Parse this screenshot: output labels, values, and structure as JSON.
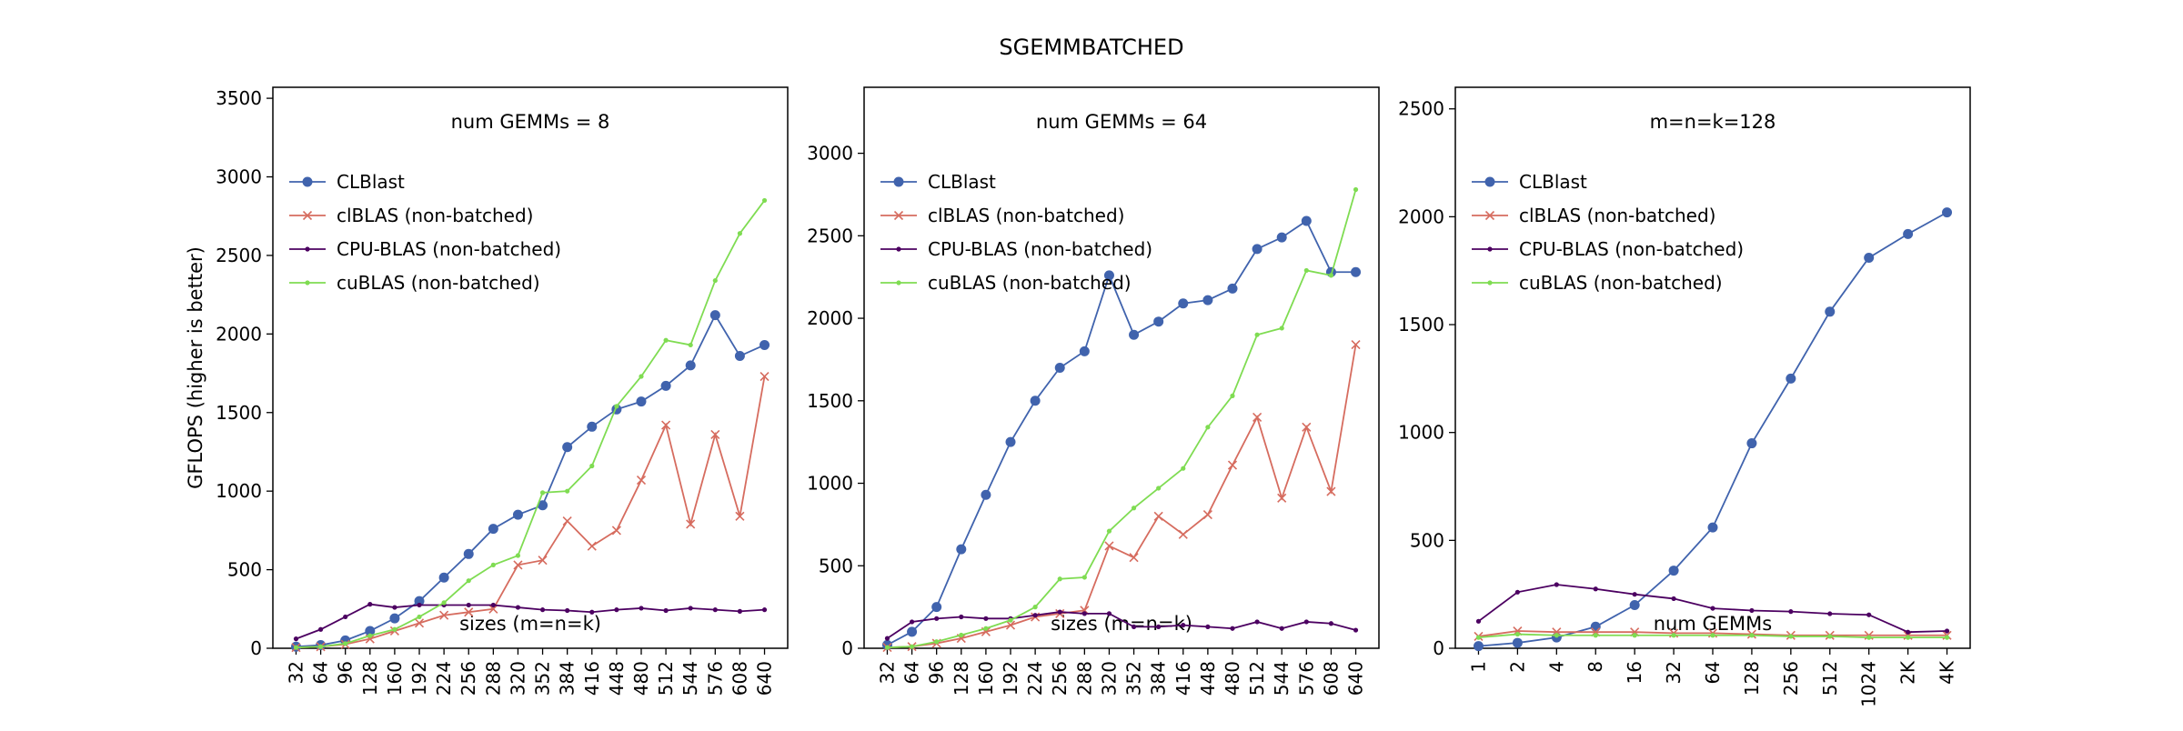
{
  "figure": {
    "suptitle": "SGEMMBATCHED"
  },
  "colors": {
    "CLBlast": "#4063ad",
    "clBLAS": "#d66c5f",
    "CPU-BLAS": "#4c0061",
    "cuBLAS": "#7fdc52"
  },
  "chart_data": [
    {
      "type": "line",
      "title": "num GEMMs = 8",
      "xlabel": "sizes (m=n=k)",
      "ylabel": "GFLOPS (higher is better)",
      "ylim": [
        0,
        3570
      ],
      "yticks": [
        0,
        500,
        1000,
        1500,
        2000,
        2500,
        3000,
        3500
      ],
      "categories": [
        "32",
        "64",
        "96",
        "128",
        "160",
        "192",
        "224",
        "256",
        "288",
        "320",
        "352",
        "384",
        "416",
        "448",
        "480",
        "512",
        "544",
        "576",
        "608",
        "640"
      ],
      "legend_position": "upper left",
      "grid": false,
      "series": [
        {
          "name": "CLBlast",
          "marker": "circle",
          "values": [
            10,
            20,
            50,
            110,
            190,
            300,
            450,
            600,
            760,
            850,
            910,
            1280,
            1410,
            1520,
            1570,
            1670,
            1800,
            2120,
            1860,
            1930
          ]
        },
        {
          "name": "clBLAS (non-batched)",
          "marker": "x",
          "values": [
            5,
            10,
            25,
            60,
            110,
            160,
            210,
            230,
            250,
            530,
            560,
            810,
            650,
            750,
            1070,
            1420,
            790,
            1360,
            840,
            1730
          ]
        },
        {
          "name": "CPU-BLAS (non-batched)",
          "marker": "dot",
          "values": [
            60,
            120,
            200,
            280,
            260,
            275,
            275,
            275,
            275,
            260,
            245,
            240,
            230,
            245,
            255,
            240,
            255,
            245,
            235,
            245
          ]
        },
        {
          "name": "cuBLAS (non-batched)",
          "marker": "dot",
          "values": [
            5,
            10,
            30,
            80,
            120,
            200,
            290,
            430,
            530,
            590,
            990,
            1000,
            1160,
            1540,
            1730,
            1960,
            1930,
            2340,
            2640,
            2850
          ]
        }
      ]
    },
    {
      "type": "line",
      "title": "num GEMMs = 64",
      "xlabel": "sizes (m=n=k)",
      "ylabel": "",
      "ylim": [
        0,
        3400
      ],
      "yticks": [
        0,
        500,
        1000,
        1500,
        2000,
        2500,
        3000
      ],
      "categories": [
        "32",
        "64",
        "96",
        "128",
        "160",
        "192",
        "224",
        "256",
        "288",
        "320",
        "352",
        "384",
        "416",
        "448",
        "480",
        "512",
        "544",
        "576",
        "608",
        "640"
      ],
      "legend_position": "upper left",
      "grid": false,
      "series": [
        {
          "name": "CLBlast",
          "marker": "circle",
          "values": [
            20,
            100,
            250,
            600,
            930,
            1250,
            1500,
            1700,
            1800,
            2260,
            1900,
            1980,
            2090,
            2110,
            2180,
            2420,
            2490,
            2590,
            2280,
            2280
          ]
        },
        {
          "name": "clBLAS (non-batched)",
          "marker": "x",
          "values": [
            5,
            10,
            30,
            60,
            100,
            140,
            190,
            210,
            230,
            620,
            550,
            800,
            690,
            810,
            1110,
            1400,
            910,
            1340,
            950,
            1840
          ]
        },
        {
          "name": "CPU-BLAS (non-batched)",
          "marker": "dot",
          "values": [
            60,
            160,
            180,
            190,
            180,
            180,
            200,
            220,
            210,
            210,
            130,
            130,
            140,
            130,
            120,
            160,
            120,
            160,
            150,
            110
          ]
        },
        {
          "name": "cuBLAS (non-batched)",
          "marker": "dot",
          "values": [
            5,
            10,
            40,
            80,
            120,
            170,
            250,
            420,
            430,
            710,
            850,
            970,
            1090,
            1340,
            1530,
            1900,
            1940,
            2290,
            2260,
            2780
          ]
        }
      ]
    },
    {
      "type": "line",
      "title": "m=n=k=128",
      "xlabel": "num GEMMs",
      "ylabel": "",
      "ylim": [
        0,
        2600
      ],
      "yticks": [
        0,
        500,
        1000,
        1500,
        2000,
        2500
      ],
      "categories": [
        "1",
        "2",
        "4",
        "8",
        "16",
        "32",
        "64",
        "128",
        "256",
        "512",
        "1024",
        "2K",
        "4K"
      ],
      "legend_position": "upper left",
      "grid": false,
      "series": [
        {
          "name": "CLBlast",
          "marker": "circle",
          "values": [
            10,
            25,
            50,
            100,
            200,
            360,
            560,
            950,
            1250,
            1560,
            1810,
            1920,
            2020
          ]
        },
        {
          "name": "clBLAS (non-batched)",
          "marker": "x",
          "values": [
            55,
            80,
            75,
            75,
            75,
            70,
            70,
            65,
            60,
            60,
            60,
            60,
            60
          ]
        },
        {
          "name": "CPU-BLAS (non-batched)",
          "marker": "dot",
          "values": [
            125,
            260,
            295,
            275,
            250,
            230,
            185,
            175,
            170,
            160,
            155,
            75,
            80
          ]
        },
        {
          "name": "cuBLAS (non-batched)",
          "marker": "dot",
          "values": [
            50,
            65,
            60,
            60,
            60,
            60,
            60,
            60,
            55,
            55,
            50,
            50,
            50
          ]
        }
      ]
    }
  ]
}
